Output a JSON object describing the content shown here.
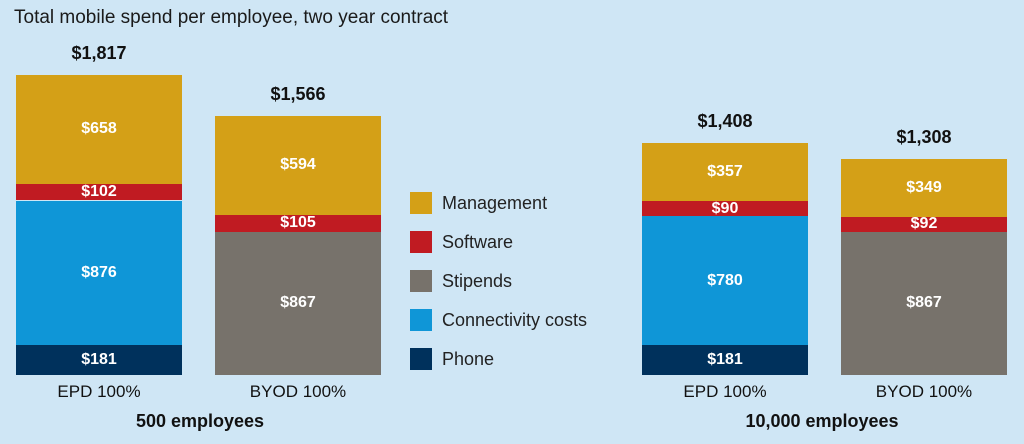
{
  "chart_data": {
    "type": "bar",
    "stacked": true,
    "title": "Total mobile spend per employee, two year contract",
    "colors": {
      "Management": "#d4a017",
      "Software": "#c01b22",
      "Stipends": "#77726b",
      "Connectivity costs": "#0f96d7",
      "Phone": "#00315c"
    },
    "legend": {
      "position": "center",
      "items": [
        "Management",
        "Software",
        "Stipends",
        "Connectivity costs",
        "Phone"
      ]
    },
    "groups": [
      {
        "label": "500 employees",
        "bars": [
          {
            "label": "EPD 100%",
            "total_label": "$1,817",
            "total": 1817,
            "segments": [
              {
                "name": "Phone",
                "value": 181,
                "label": "$181"
              },
              {
                "name": "Connectivity costs",
                "value": 876,
                "label": "$876"
              },
              {
                "name": "Software",
                "value": 102,
                "label": "$102"
              },
              {
                "name": "Management",
                "value": 658,
                "label": "$658"
              }
            ]
          },
          {
            "label": "BYOD 100%",
            "total_label": "$1,566",
            "total": 1566,
            "segments": [
              {
                "name": "Stipends",
                "value": 867,
                "label": "$867"
              },
              {
                "name": "Software",
                "value": 105,
                "label": "$105"
              },
              {
                "name": "Management",
                "value": 594,
                "label": "$594"
              }
            ]
          }
        ]
      },
      {
        "label": "10,000 employees",
        "bars": [
          {
            "label": "EPD 100%",
            "total_label": "$1,408",
            "total": 1408,
            "segments": [
              {
                "name": "Phone",
                "value": 181,
                "label": "$181"
              },
              {
                "name": "Connectivity costs",
                "value": 780,
                "label": "$780"
              },
              {
                "name": "Software",
                "value": 90,
                "label": "$90"
              },
              {
                "name": "Management",
                "value": 357,
                "label": "$357"
              }
            ]
          },
          {
            "label": "BYOD 100%",
            "total_label": "$1,308",
            "total": 1308,
            "segments": [
              {
                "name": "Stipends",
                "value": 867,
                "label": "$867"
              },
              {
                "name": "Software",
                "value": 92,
                "label": "$92"
              },
              {
                "name": "Management",
                "value": 349,
                "label": "$349"
              }
            ]
          }
        ]
      }
    ]
  }
}
